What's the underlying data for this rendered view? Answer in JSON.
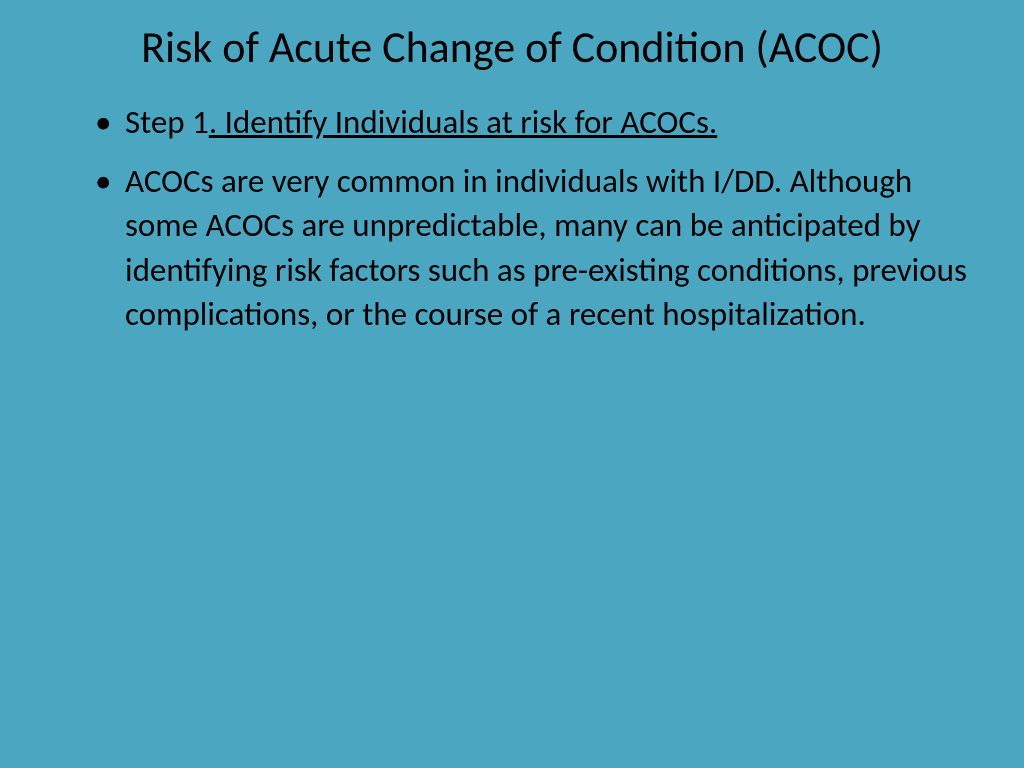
{
  "slide": {
    "background_color": "#4ba6c1",
    "text_color": "#000000",
    "title": "Risk of Acute Change of Condition (ACOC)",
    "title_fontsize": 44,
    "body_fontsize": 33,
    "bullets": [
      {
        "prefix": "Step 1",
        "underlined": ". Identify Individuals at risk for ACOCs.",
        "plain": ""
      },
      {
        "prefix": "",
        "underlined": "",
        "plain": "ACOCs are very common in individuals with I/DD. Although some ACOCs are unpredictable, many can be anticipated by identifying risk factors such as pre-existing conditions, previous complications, or the course of a recent hospitalization."
      }
    ]
  }
}
